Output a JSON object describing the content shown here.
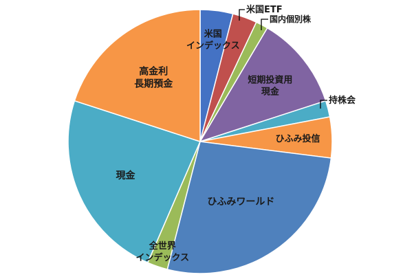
{
  "chart_data": {
    "type": "pie",
    "start": "top",
    "direction": "clockwise",
    "legend": "none",
    "slices": [
      {
        "label": "米国インデックス",
        "label_lines": [
          "米国",
          "インデックス"
        ],
        "value": 4.0,
        "color": "#4472C4",
        "label_style": "inside"
      },
      {
        "label": "米国ETF",
        "label_lines": [
          "米国ETF"
        ],
        "value": 3.0,
        "color": "#C0504D",
        "label_style": "leader"
      },
      {
        "label": "国内個別株",
        "label_lines": [
          "国内個別株"
        ],
        "value": 1.5,
        "color": "#9BBB59",
        "label_style": "leader"
      },
      {
        "label": "短期投資用現金",
        "label_lines": [
          "短期投資用",
          "現金"
        ],
        "value": 11.5,
        "color": "#8064A2",
        "label_style": "inside"
      },
      {
        "label": "持株会",
        "label_lines": [
          "持株会"
        ],
        "value": 2.0,
        "color": "#4BACC6",
        "label_style": "leader"
      },
      {
        "label": "ひふみ投信",
        "label_lines": [
          "ひふみ投信"
        ],
        "value": 5.0,
        "color": "#F79646",
        "label_style": "inside"
      },
      {
        "label": "ひふみワールド",
        "label_lines": [
          "ひふみワールド"
        ],
        "value": 27.0,
        "color": "#4F81BD",
        "label_style": "inside"
      },
      {
        "label": "全世界インデックス",
        "label_lines": [
          "全世界",
          "インデックス"
        ],
        "value": 2.5,
        "color": "#9BBB59",
        "label_style": "inside"
      },
      {
        "label": "現金",
        "label_lines": [
          "現金"
        ],
        "value": 23.5,
        "color": "#4BACC6",
        "label_style": "inside"
      },
      {
        "label": "高金利長期預金",
        "label_lines": [
          "高金利",
          "長期預金"
        ],
        "value": 20.0,
        "color": "#F79646",
        "label_style": "inside"
      }
    ]
  }
}
